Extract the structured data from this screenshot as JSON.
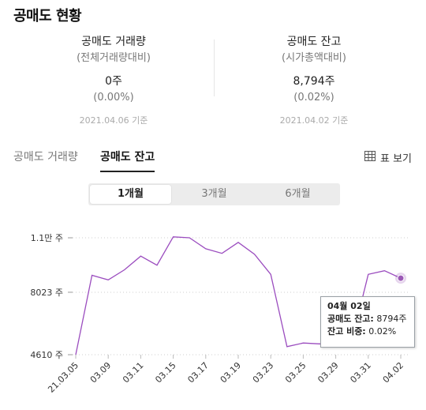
{
  "page": {
    "title": "공매도 현황"
  },
  "stats": [
    {
      "label": "공매도 거래량",
      "sub": "(전체거래량대비)",
      "value": "0주",
      "pct": "(0.00%)",
      "date": "2021.04.06 기준"
    },
    {
      "label": "공매도 잔고",
      "sub": "(시가총액대비)",
      "value": "8,794주",
      "pct": "(0.02%)",
      "date": "2021.04.02 기준"
    }
  ],
  "tabs": [
    {
      "label": "공매도 거래량",
      "active": false
    },
    {
      "label": "공매도 잔고",
      "active": true
    }
  ],
  "table_view": {
    "label": "표 보기",
    "icon": "table-grid-icon"
  },
  "periods": [
    {
      "label": "1개월",
      "active": true
    },
    {
      "label": "3개월",
      "active": false
    },
    {
      "label": "6개월",
      "active": false
    }
  ],
  "tooltip": {
    "date": "04월 02일",
    "balance_label": "공매도 잔고:",
    "balance_value": "8794주",
    "ratio_label": "잔고 비중:",
    "ratio_value": "0.02%"
  },
  "colors": {
    "line": "#9b4dbf",
    "marker": "#9b59b6",
    "grid": "#cfcfcf"
  },
  "chart_data": {
    "type": "line",
    "y_tick_labels": [
      "1.1만 주",
      "8023 주",
      "4610 주"
    ],
    "y_ticks": [
      11000,
      8023,
      4610
    ],
    "ylim": [
      4610,
      11000
    ],
    "x_tick_labels": [
      "21.03.05",
      "03.09",
      "03.11",
      "03.15",
      "03.17",
      "03.19",
      "03.23",
      "03.25",
      "03.29",
      "03.31",
      "04.02"
    ],
    "series": [
      {
        "x": [
          "21.03.05",
          "03.08",
          "03.09",
          "03.10",
          "03.11",
          "03.12",
          "03.15",
          "03.16",
          "03.17",
          "03.18",
          "03.19",
          "03.22",
          "03.23",
          "03.24",
          "03.25",
          "03.26",
          "03.29",
          "03.30",
          "03.31",
          "04.01",
          "04.02"
        ],
        "values": [
          4610,
          8950,
          8700,
          9250,
          10000,
          9500,
          11050,
          11000,
          10400,
          10150,
          10750,
          10100,
          9000,
          5050,
          5250,
          5200,
          5200,
          5400,
          9000,
          9200,
          8794
        ]
      }
    ]
  }
}
